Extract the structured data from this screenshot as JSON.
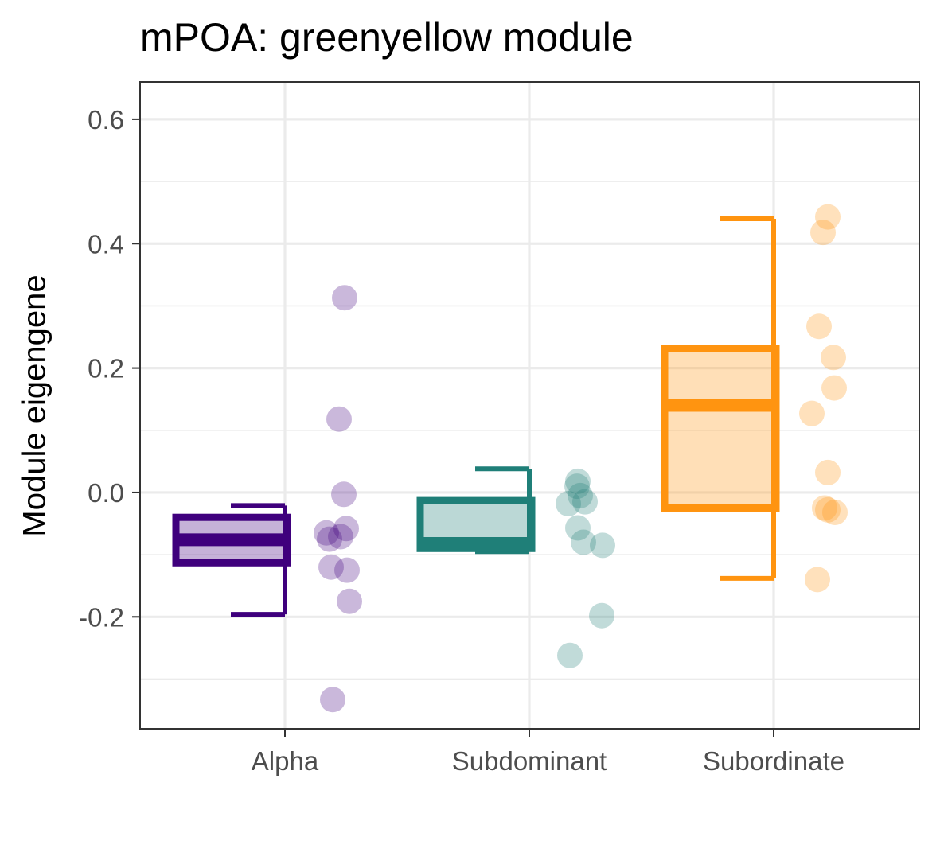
{
  "chart_data": {
    "type": "box",
    "title": "mPOA: greenyellow module",
    "xlabel": "",
    "ylabel": "Module eigengene",
    "categories": [
      "Alpha",
      "Subdominant",
      "Subordinate"
    ],
    "ylim": [
      -0.38,
      0.66
    ],
    "yticks": [
      -0.2,
      0.0,
      0.2,
      0.4,
      0.6
    ],
    "ytick_labels": [
      "-0.2",
      "0.0",
      "0.2",
      "0.4",
      "0.6"
    ],
    "grid": true,
    "series": [
      {
        "category": "Alpha",
        "color": "#3f007d",
        "box": {
          "q1": -0.113,
          "median": -0.076,
          "q3": -0.04,
          "whisker_low": -0.196,
          "whisker_high": -0.021
        },
        "points": [
          0.313,
          0.118,
          -0.003,
          -0.058,
          -0.065,
          -0.071,
          -0.075,
          -0.12,
          -0.125,
          -0.175,
          -0.333
        ]
      },
      {
        "category": "Subdominant",
        "color": "#1f7f78",
        "box": {
          "q1": -0.09,
          "median": -0.082,
          "q3": -0.013,
          "whisker_low": -0.095,
          "whisker_high": 0.038
        },
        "points": [
          0.018,
          0.01,
          -0.005,
          -0.015,
          -0.018,
          -0.057,
          -0.08,
          -0.085,
          -0.198,
          -0.262
        ]
      },
      {
        "category": "Subordinate",
        "color": "#ff9410",
        "box": {
          "q1": -0.025,
          "median": 0.14,
          "q3": 0.232,
          "whisker_low": -0.138,
          "whisker_high": 0.44
        },
        "points": [
          0.443,
          0.418,
          0.267,
          0.217,
          0.168,
          0.127,
          0.032,
          -0.025,
          -0.028,
          -0.032,
          -0.14
        ]
      }
    ]
  }
}
